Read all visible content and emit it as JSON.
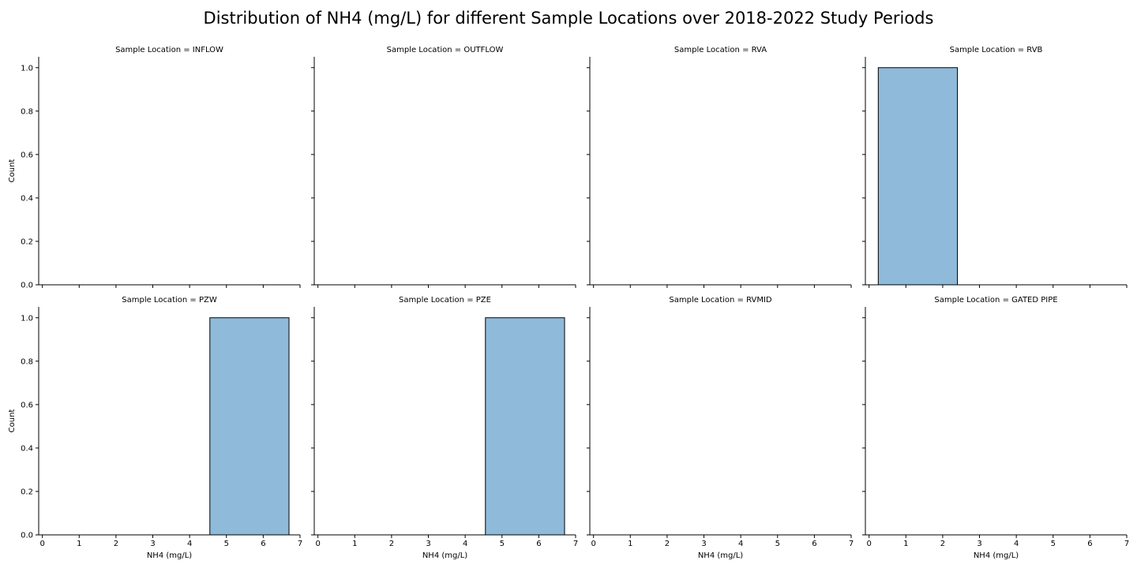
{
  "chart_data": {
    "type": "bar",
    "title": "Distribution of NH4 (mg/L) for different Sample Locations over 2018-2022 Study Periods",
    "xlabel": "NH4 (mg/L)",
    "ylabel": "Count",
    "xlim": [
      -0.1,
      7
    ],
    "ylim": [
      0,
      1.05
    ],
    "xticks": [
      0,
      1,
      2,
      3,
      4,
      5,
      6,
      7
    ],
    "yticks": [
      0.0,
      0.2,
      0.4,
      0.6,
      0.8,
      1.0
    ],
    "ytick_labels": [
      "0.0",
      "0.2",
      "0.4",
      "0.6",
      "0.8",
      "1.0"
    ],
    "bar_color": "#8fbad9",
    "grid": false,
    "panels": [
      {
        "title": "Sample Location = INFLOW",
        "bins": []
      },
      {
        "title": "Sample Location = OUTFLOW",
        "bins": []
      },
      {
        "title": "Sample Location = RVA",
        "bins": []
      },
      {
        "title": "Sample Location = RVB",
        "bins": [
          {
            "x0": 0.25,
            "x1": 2.4,
            "count": 1
          }
        ]
      },
      {
        "title": "Sample Location = PZW",
        "bins": [
          {
            "x0": 4.55,
            "x1": 6.7,
            "count": 1
          }
        ]
      },
      {
        "title": "Sample Location = PZE",
        "bins": [
          {
            "x0": 4.55,
            "x1": 6.7,
            "count": 1
          }
        ]
      },
      {
        "title": "Sample Location = RVMID",
        "bins": []
      },
      {
        "title": "Sample Location = GATED PIPE",
        "bins": []
      }
    ]
  }
}
